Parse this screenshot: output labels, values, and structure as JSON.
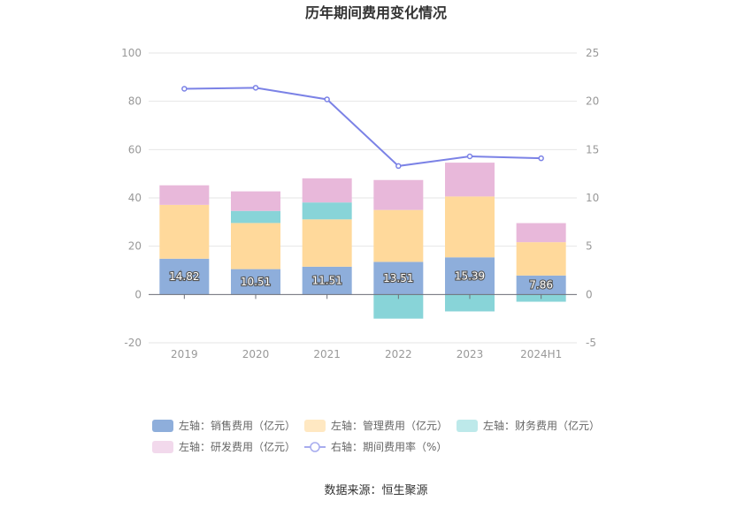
{
  "chart_data": {
    "type": "bar",
    "title": "历年期间费用变化情况",
    "categories": [
      "2019",
      "2020",
      "2021",
      "2022",
      "2023",
      "2024H1"
    ],
    "left_axis": {
      "ylim": [
        -20,
        100
      ],
      "ticks": [
        "100",
        "80",
        "60",
        "40",
        "20",
        "0",
        "-20"
      ],
      "tick_values": [
        100,
        80,
        60,
        40,
        20,
        0,
        -20
      ]
    },
    "right_axis": {
      "ylim": [
        -5,
        25
      ],
      "ticks": [
        "25",
        "20",
        "15",
        "10",
        "5",
        "0",
        "-5"
      ],
      "tick_values": [
        25,
        20,
        15,
        10,
        5,
        0,
        -5
      ]
    },
    "series": [
      {
        "name": "左轴：销售费用（亿元）",
        "kind": "bar",
        "color": "#8eaedb",
        "values": [
          14.82,
          10.51,
          11.51,
          13.51,
          15.39,
          7.86
        ],
        "labels": [
          "14.82",
          "10.51",
          "11.51",
          "13.51",
          "15.39",
          "7.86"
        ]
      },
      {
        "name": "左轴：管理费用（亿元）",
        "kind": "bar",
        "color": "#ffd99b",
        "values": [
          22.3,
          19.1,
          19.6,
          21.5,
          25.2,
          13.8
        ]
      },
      {
        "name": "左轴：财务费用（亿元）",
        "kind": "bar",
        "color": "#88d4d8",
        "values": [
          0,
          5.0,
          7.0,
          -10.0,
          -7.0,
          -3.0
        ]
      },
      {
        "name": "左轴：研发费用（亿元）",
        "kind": "bar",
        "color": "#e8b8da",
        "values": [
          8.1,
          8.1,
          10.0,
          12.4,
          14.0,
          7.9
        ]
      },
      {
        "name": "右轴：期间费用率（%）",
        "kind": "line",
        "color": "#7b82e6",
        "values": [
          21.3,
          21.4,
          20.2,
          13.3,
          14.3,
          14.1
        ]
      }
    ],
    "legend": [
      {
        "label": "左轴：销售费用（亿元）",
        "color": "#8eaedb",
        "shape": "box"
      },
      {
        "label": "左轴：管理费用（亿元）",
        "color": "#ffe8c2",
        "shape": "box"
      },
      {
        "label": "左轴：财务费用（亿元）",
        "color": "#bde9ea",
        "shape": "box"
      },
      {
        "label": "左轴：研发费用（亿元）",
        "color": "#f2d9ec",
        "shape": "box"
      },
      {
        "label": "右轴：期间费用率（%）",
        "color": "#a7acee",
        "shape": "line"
      }
    ],
    "legend_position": "bottom",
    "source": "数据来源：恒生聚源"
  }
}
